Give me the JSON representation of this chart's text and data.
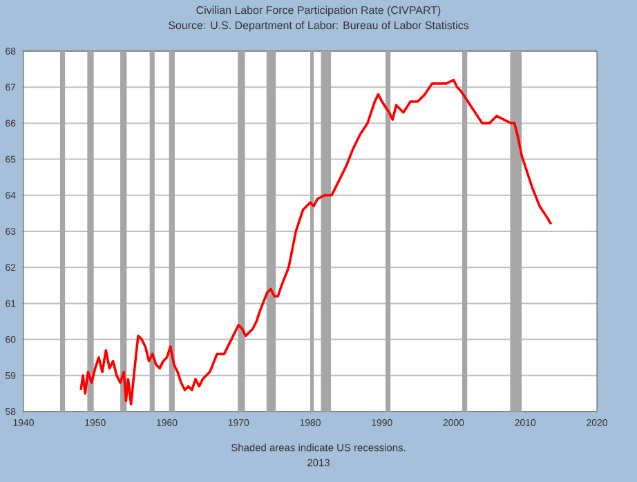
{
  "chart_data": {
    "type": "line",
    "title": "Civilian Labor Force Participation Rate (CIVPART)",
    "subtitle": "Source: U.S. Department of Labor: Bureau of Labor Statistics",
    "annotations": [
      "Shaded areas indicate US recessions.",
      "2013"
    ],
    "xlim": [
      1940,
      2020
    ],
    "xticks": [
      1940,
      1950,
      1960,
      1970,
      1980,
      1990,
      2000,
      2010,
      2020
    ],
    "ylim": [
      58,
      68
    ],
    "yticks": [
      58,
      59,
      60,
      61,
      62,
      63,
      64,
      65,
      66,
      67,
      68
    ],
    "grid": "y",
    "bands": [
      {
        "axis": "x",
        "from": 1945.1,
        "to": 1945.8,
        "color": "#a6a6a6"
      },
      {
        "axis": "x",
        "from": 1948.9,
        "to": 1949.8,
        "color": "#a6a6a6"
      },
      {
        "axis": "x",
        "from": 1953.5,
        "to": 1954.4,
        "color": "#a6a6a6"
      },
      {
        "axis": "x",
        "from": 1957.6,
        "to": 1958.3,
        "color": "#a6a6a6"
      },
      {
        "axis": "x",
        "from": 1960.3,
        "to": 1961.1,
        "color": "#a6a6a6"
      },
      {
        "axis": "x",
        "from": 1969.9,
        "to": 1970.9,
        "color": "#a6a6a6"
      },
      {
        "axis": "x",
        "from": 1973.9,
        "to": 1975.2,
        "color": "#a6a6a6"
      },
      {
        "axis": "x",
        "from": 1980.0,
        "to": 1980.5,
        "color": "#a6a6a6"
      },
      {
        "axis": "x",
        "from": 1981.5,
        "to": 1982.9,
        "color": "#a6a6a6"
      },
      {
        "axis": "x",
        "from": 1990.5,
        "to": 1991.2,
        "color": "#a6a6a6"
      },
      {
        "axis": "x",
        "from": 2001.2,
        "to": 2001.9,
        "color": "#a6a6a6"
      },
      {
        "axis": "x",
        "from": 2007.9,
        "to": 2009.5,
        "color": "#a6a6a6"
      }
    ],
    "series": [
      {
        "color": "#ff0000",
        "x": [
          1948.0,
          1948.3,
          1948.6,
          1949,
          1949.5,
          1950,
          1950.5,
          1951,
          1951.5,
          1952,
          1952.5,
          1953,
          1953.5,
          1954,
          1954.3,
          1954.6,
          1955,
          1955.5,
          1956,
          1956.5,
          1957,
          1957.5,
          1958,
          1958.5,
          1959,
          1959.5,
          1960,
          1960.5,
          1961,
          1961.5,
          1962,
          1962.5,
          1963,
          1963.5,
          1964,
          1964.5,
          1965,
          1966,
          1967,
          1968,
          1969,
          1970,
          1970.5,
          1971,
          1971.5,
          1972,
          1972.5,
          1973,
          1974,
          1974.5,
          1975,
          1975.5,
          1976,
          1977,
          1978,
          1979,
          1980,
          1980.5,
          1981,
          1982,
          1982.5,
          1983,
          1984,
          1985,
          1986,
          1987,
          1988,
          1989,
          1989.5,
          1990,
          1991,
          1991.5,
          1992,
          1993,
          1994,
          1995,
          1996,
          1997,
          1998,
          1999,
          2000,
          2000.5,
          2001,
          2002,
          2003,
          2004,
          2005,
          2006,
          2007,
          2008,
          2008.5,
          2009,
          2009.5,
          2010,
          2011,
          2012,
          2013,
          2013.6
        ],
        "values": [
          58.6,
          59.0,
          58.5,
          59.1,
          58.8,
          59.2,
          59.5,
          59.1,
          59.7,
          59.2,
          59.4,
          59.0,
          58.8,
          59.1,
          58.3,
          58.9,
          58.2,
          59.2,
          60.1,
          60.0,
          59.8,
          59.4,
          59.6,
          59.3,
          59.2,
          59.4,
          59.5,
          59.8,
          59.3,
          59.1,
          58.8,
          58.6,
          58.7,
          58.6,
          58.9,
          58.7,
          58.9,
          59.1,
          59.6,
          59.6,
          60.0,
          60.4,
          60.3,
          60.1,
          60.2,
          60.3,
          60.5,
          60.8,
          61.3,
          61.4,
          61.2,
          61.2,
          61.5,
          62.0,
          63.0,
          63.6,
          63.8,
          63.7,
          63.9,
          64.0,
          64.0,
          64.0,
          64.4,
          64.8,
          65.3,
          65.7,
          66.0,
          66.6,
          66.8,
          66.6,
          66.3,
          66.1,
          66.5,
          66.3,
          66.6,
          66.6,
          66.8,
          67.1,
          67.1,
          67.1,
          67.2,
          67.0,
          66.9,
          66.6,
          66.3,
          66.0,
          66.0,
          66.2,
          66.1,
          66.0,
          66.0,
          65.6,
          65.1,
          64.8,
          64.2,
          63.7,
          63.4,
          63.2
        ]
      }
    ]
  }
}
